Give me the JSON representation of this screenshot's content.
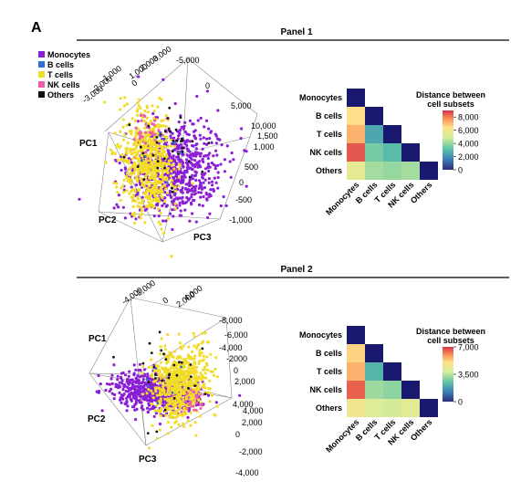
{
  "figure": {
    "letter": "A"
  },
  "legend": [
    {
      "label": "Monocytes",
      "color": "#8a1fd6"
    },
    {
      "label": "B cells",
      "color": "#2f6fd0"
    },
    {
      "label": "T cells",
      "color": "#f2dc2a"
    },
    {
      "label": "NK cells",
      "color": "#ec5fa8"
    },
    {
      "label": "Others",
      "color": "#111111"
    }
  ],
  "chart_data": [
    {
      "type": "scatter",
      "title": "Panel 1",
      "axis_labels": [
        "PC1",
        "PC2",
        "PC3"
      ],
      "ticks_top": [
        "3,000",
        "2,000",
        "1,000",
        "0",
        "-1,000",
        "-2,000",
        "-3,000"
      ],
      "ticks_right_top": [
        "-5,000",
        "0",
        "5,000",
        "10,000"
      ],
      "ticks_right": [
        "1,500",
        "1,000",
        "500",
        "0",
        "-500",
        "-1,000"
      ],
      "series": [
        {
          "name": "Monocytes",
          "count": 700
        },
        {
          "name": "T cells",
          "count": 620
        },
        {
          "name": "NK cells",
          "count": 35
        },
        {
          "name": "Others",
          "count": 40
        },
        {
          "name": "B cells",
          "count": 8
        }
      ]
    },
    {
      "type": "heatmap",
      "title": "Distance between cell subsets",
      "categories": [
        "Monocytes",
        "B cells",
        "T cells",
        "NK cells",
        "Others"
      ],
      "values": [
        [
          0,
          null,
          null,
          null,
          null
        ],
        [
          6500,
          0,
          null,
          null,
          null
        ],
        [
          7200,
          2500,
          0,
          null,
          null
        ],
        [
          8500,
          3500,
          3000,
          0,
          null
        ],
        [
          5500,
          4200,
          4000,
          4200,
          0
        ]
      ],
      "colorbar": {
        "min": 0,
        "max": 9000,
        "ticks": [
          "8,000",
          "6,000",
          "4,000",
          "2,000",
          "0"
        ]
      }
    },
    {
      "type": "scatter",
      "title": "Panel 2",
      "axis_labels": [
        "PC1",
        "PC2",
        "PC3"
      ],
      "ticks_top": [
        "-4,000",
        "-2,000",
        "0",
        "2,000",
        "4,000"
      ],
      "ticks_right_top": [
        "-8,000",
        "-6,000",
        "-4,000",
        "-2000",
        "0",
        "2,000",
        "4,000"
      ],
      "ticks_right": [
        "4,000",
        "2,000",
        "0",
        "-2,000",
        "-4,000"
      ],
      "series": [
        {
          "name": "Monocytes",
          "count": 650
        },
        {
          "name": "T cells",
          "count": 650
        },
        {
          "name": "NK cells",
          "count": 25
        },
        {
          "name": "Others",
          "count": 30
        },
        {
          "name": "B cells",
          "count": 6
        }
      ]
    },
    {
      "type": "heatmap",
      "title": "Distance between cell subsets",
      "categories": [
        "Monocytes",
        "B cells",
        "T cells",
        "NK cells",
        "Others"
      ],
      "values": [
        [
          0,
          null,
          null,
          null,
          null
        ],
        [
          5200,
          0,
          null,
          null,
          null
        ],
        [
          5600,
          2200,
          0,
          null,
          null
        ],
        [
          6500,
          3200,
          3000,
          0,
          null
        ],
        [
          4600,
          4000,
          3800,
          4200,
          0
        ]
      ],
      "colorbar": {
        "min": 0,
        "max": 7000,
        "ticks": [
          "7,000",
          "3,500",
          "0"
        ]
      }
    }
  ]
}
